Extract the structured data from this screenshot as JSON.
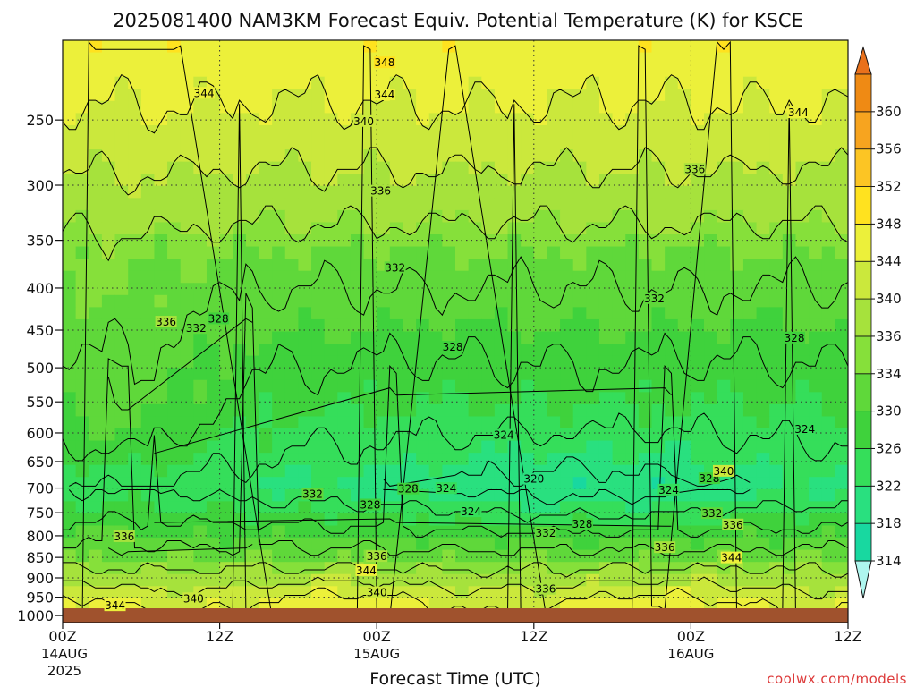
{
  "chart_data": {
    "type": "heatmap",
    "title": "2025081400 NAM3KM Forecast Equiv. Potential Temperature (K) for KSCE",
    "xlabel": "Forecast Time (UTC)",
    "ylabel": "",
    "credit": "coolwx.com/models",
    "y_axis": {
      "scale": "log",
      "range_hPa": [
        1020,
        200
      ],
      "ticks": [
        250,
        300,
        350,
        400,
        450,
        500,
        550,
        600,
        650,
        700,
        750,
        800,
        850,
        900,
        950,
        1000
      ]
    },
    "x_axis": {
      "range_hours": [
        0,
        60
      ],
      "ticks": [
        {
          "hour": 0,
          "line1": "00Z",
          "line2": "14AUG",
          "line3": "2025"
        },
        {
          "hour": 12,
          "line1": "12Z",
          "line2": "",
          "line3": ""
        },
        {
          "hour": 24,
          "line1": "00Z",
          "line2": "15AUG",
          "line3": ""
        },
        {
          "hour": 36,
          "line1": "12Z",
          "line2": "",
          "line3": ""
        },
        {
          "hour": 48,
          "line1": "00Z",
          "line2": "16AUG",
          "line3": ""
        },
        {
          "hour": 60,
          "line1": "12Z",
          "line2": "",
          "line3": ""
        }
      ]
    },
    "colorbar": {
      "labels": [
        314,
        318,
        322,
        326,
        330,
        334,
        336,
        340,
        344,
        348,
        352,
        356,
        360
      ],
      "colors": [
        "#18d8a0",
        "#29e07f",
        "#35de5a",
        "#3fd23c",
        "#5fd83a",
        "#86e03a",
        "#a6e23c",
        "#cbe83c",
        "#ecf03a",
        "#ffe21f",
        "#fcc524",
        "#f7a41f",
        "#ef8a14"
      ],
      "extend_low_color": "#aef6ee",
      "extend_high_color": "#e9711c"
    },
    "below_ground_color": "#a0522d",
    "below_ground_from_hPa": 980,
    "contour_interval_K": 4,
    "contour_labels": [
      {
        "t": 24.6,
        "p": 213,
        "v": "348"
      },
      {
        "t": 10.8,
        "p": 232,
        "v": "344"
      },
      {
        "t": 24.6,
        "p": 233,
        "v": "344"
      },
      {
        "t": 56.2,
        "p": 245,
        "v": "344"
      },
      {
        "t": 23.0,
        "p": 251,
        "v": "340"
      },
      {
        "t": 48.3,
        "p": 287,
        "v": "336"
      },
      {
        "t": 24.3,
        "p": 305,
        "v": "336"
      },
      {
        "t": 25.4,
        "p": 378,
        "v": "332"
      },
      {
        "t": 45.2,
        "p": 412,
        "v": "332"
      },
      {
        "t": 7.9,
        "p": 440,
        "v": "336"
      },
      {
        "t": 10.2,
        "p": 448,
        "v": "332"
      },
      {
        "t": 11.9,
        "p": 436,
        "v": "328"
      },
      {
        "t": 29.8,
        "p": 472,
        "v": "328"
      },
      {
        "t": 55.9,
        "p": 460,
        "v": "328"
      },
      {
        "t": 33.7,
        "p": 604,
        "v": "324"
      },
      {
        "t": 56.7,
        "p": 594,
        "v": "324"
      },
      {
        "t": 36.0,
        "p": 683,
        "v": "320"
      },
      {
        "t": 29.3,
        "p": 701,
        "v": "324"
      },
      {
        "t": 26.4,
        "p": 702,
        "v": "328"
      },
      {
        "t": 19.1,
        "p": 712,
        "v": "332"
      },
      {
        "t": 23.5,
        "p": 734,
        "v": "328"
      },
      {
        "t": 31.2,
        "p": 748,
        "v": "324"
      },
      {
        "t": 46.3,
        "p": 704,
        "v": "324"
      },
      {
        "t": 49.4,
        "p": 682,
        "v": "328"
      },
      {
        "t": 50.5,
        "p": 668,
        "v": "340"
      },
      {
        "t": 49.6,
        "p": 752,
        "v": "332"
      },
      {
        "t": 51.2,
        "p": 776,
        "v": "336"
      },
      {
        "t": 36.9,
        "p": 794,
        "v": "332"
      },
      {
        "t": 39.7,
        "p": 775,
        "v": "328"
      },
      {
        "t": 46.0,
        "p": 827,
        "v": "336"
      },
      {
        "t": 51.1,
        "p": 851,
        "v": "344"
      },
      {
        "t": 24.0,
        "p": 848,
        "v": "336"
      },
      {
        "t": 23.2,
        "p": 882,
        "v": "344"
      },
      {
        "t": 24.0,
        "p": 938,
        "v": "340"
      },
      {
        "t": 36.9,
        "p": 929,
        "v": "336"
      },
      {
        "t": 10.0,
        "p": 954,
        "v": "340"
      },
      {
        "t": 4.0,
        "p": 973,
        "v": "344"
      },
      {
        "t": 4.7,
        "p": 802,
        "v": "336"
      }
    ]
  }
}
